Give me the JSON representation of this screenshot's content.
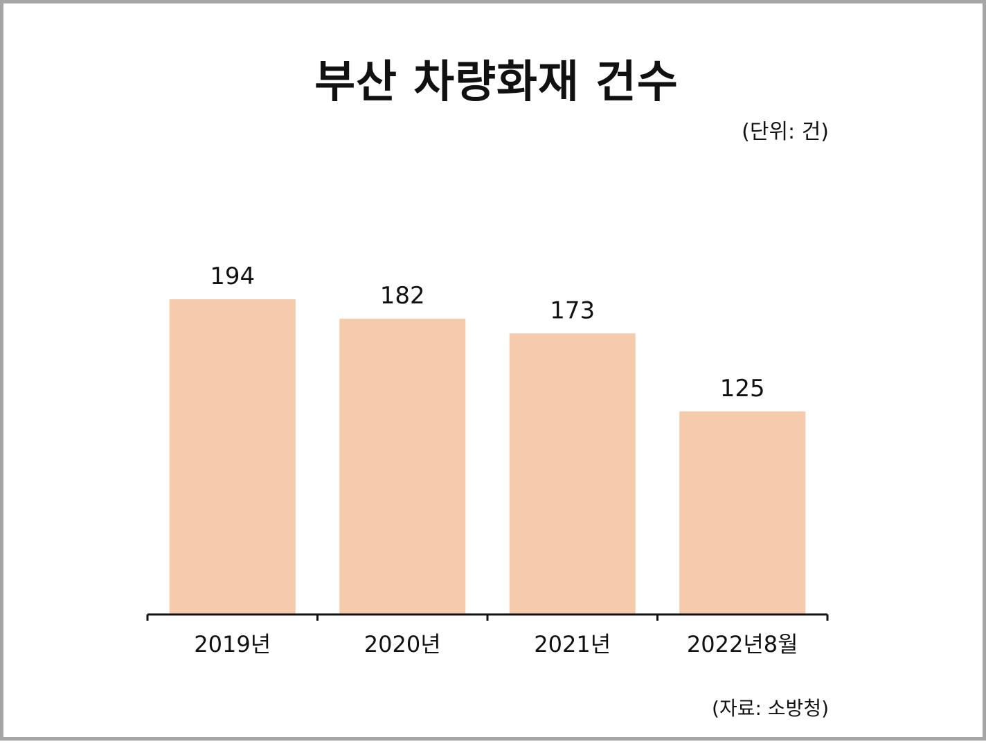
{
  "chart_data": {
    "type": "bar",
    "title": "부산 차량화재 건수",
    "unit_note": "(단위: 건)",
    "source_note": "(자료: 소방청)",
    "categories": [
      "2019년",
      "2020년",
      "2021년",
      "2022년8월"
    ],
    "values": [
      194,
      182,
      173,
      125
    ],
    "ylim": [
      0,
      194
    ],
    "grid": false,
    "legend": "none",
    "bar_color": "#f6cbab",
    "axis_color": "#111111"
  }
}
